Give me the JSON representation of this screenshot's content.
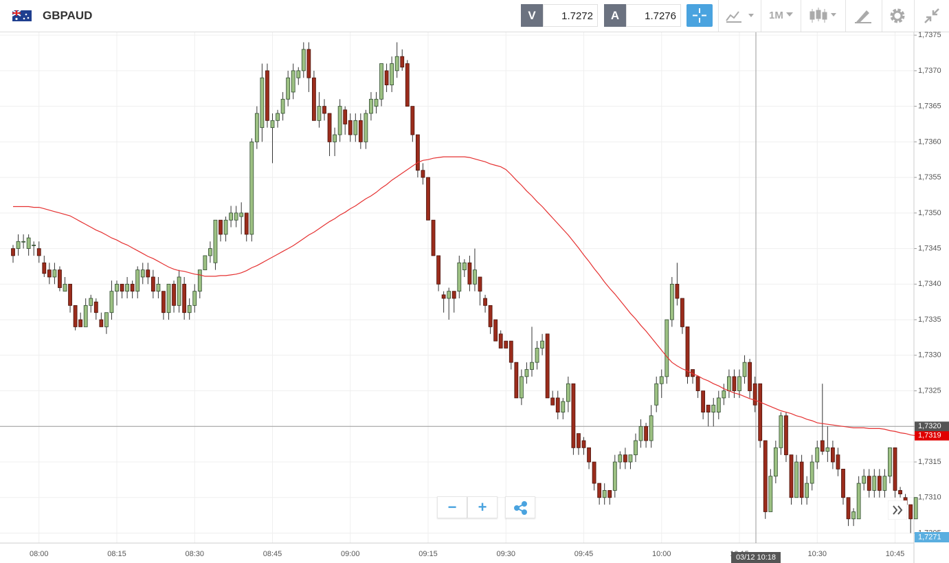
{
  "header": {
    "symbol": "GBPAUD",
    "sell_label": "V",
    "sell": "1.7272",
    "buy_label": "A",
    "buy": "1.7276",
    "timeframe": "1M"
  },
  "chart_data": {
    "type": "candlestick",
    "categories": [
      null,
      null,
      null,
      null,
      null,
      "08:00",
      null,
      null,
      null,
      null,
      null,
      null,
      null,
      null,
      null,
      null,
      null,
      null,
      null,
      null,
      "08:15",
      null,
      null,
      null,
      null,
      null,
      null,
      null,
      null,
      null,
      null,
      null,
      null,
      null,
      null,
      "08:30",
      null,
      null,
      null,
      null,
      null,
      null,
      null,
      null,
      null,
      null,
      null,
      null,
      null,
      null,
      "08:45",
      null,
      null,
      null,
      null,
      null,
      null,
      null,
      null,
      null,
      null,
      null,
      null,
      null,
      null,
      "09:00",
      null,
      null,
      null,
      null,
      null,
      null,
      null,
      null,
      null,
      null,
      null,
      null,
      null,
      null,
      "09:15",
      null,
      null,
      null,
      null,
      null,
      null,
      null,
      null,
      null,
      null,
      null,
      null,
      null,
      null,
      "09:30",
      null,
      null,
      null,
      null,
      null,
      null,
      null,
      null,
      null,
      null,
      null,
      null,
      null,
      null,
      "09:45",
      null,
      null,
      null,
      null,
      null,
      null,
      null,
      null,
      null,
      null,
      null,
      null,
      null,
      null,
      "10:00",
      null,
      null,
      null,
      null,
      null,
      null,
      null,
      null,
      null,
      null,
      null,
      null,
      null,
      null,
      "10:15",
      null,
      null,
      null,
      null,
      null,
      null,
      null,
      null,
      null,
      null,
      null,
      null,
      null,
      null,
      "10:30",
      null,
      null,
      null,
      null,
      null,
      null,
      null,
      null,
      null,
      null,
      null,
      null,
      null,
      null,
      "10:45",
      null,
      null,
      null,
      null
    ],
    "open": [
      1.7345,
      1.7345,
      1.7346,
      1.7345,
      1.73455,
      1.7345,
      1.7343,
      1.7342,
      1.7341,
      1.7342,
      1.7339,
      1.734,
      1.7337,
      1.7335,
      1.7334,
      1.7337,
      1.73375,
      1.7335,
      1.7334,
      1.7336,
      1.7339,
      1.734,
      1.7339,
      1.734,
      1.7339,
      1.7341,
      1.7342,
      1.7341,
      1.7339,
      1.7339,
      1.7336,
      1.734,
      1.7337,
      1.734,
      1.7336,
      1.7337,
      1.7339,
      1.7342,
      1.7344,
      1.7343,
      1.7349,
      1.7347,
      1.7349,
      1.7349,
      1.73495,
      1.735,
      1.7347,
      1.736,
      1.7362,
      1.737,
      1.7362,
      1.7363,
      1.7364,
      1.7366,
      1.7367,
      1.7369,
      1.737,
      1.7373,
      1.7369,
      1.7363,
      1.7365,
      1.7364,
      1.736,
      1.7361,
      1.73645,
      1.7363,
      1.7361,
      1.7363,
      1.736,
      1.7364,
      1.7365,
      1.7366,
      1.737,
      1.7368,
      1.737,
      1.7372,
      1.7371,
      1.7365,
      1.7361,
      1.7356,
      1.7355,
      1.7349,
      1.7344,
      1.73385,
      1.7338,
      1.7339,
      1.7339,
      1.7342,
      1.7343,
      1.734,
      1.7341,
      1.7338,
      1.7337,
      1.7335,
      1.7333,
      1.7332,
      1.7332,
      1.7329,
      1.7324,
      1.7327,
      1.7328,
      1.7329,
      1.7331,
      1.7333,
      1.7324,
      1.7324,
      1.7322,
      1.73235,
      1.7326,
      1.7319,
      1.7318,
      1.7317,
      1.7315,
      1.7312,
      1.731,
      1.7311,
      1.7311,
      1.7315,
      1.7316,
      1.7315,
      1.7316,
      1.7318,
      1.732,
      1.7318,
      1.7323,
      1.7326,
      1.7327,
      1.7335,
      1.734,
      1.7338,
      1.7334,
      1.7328,
      1.7327,
      1.7325,
      1.7323,
      1.7322,
      1.7322,
      1.7324,
      1.7325,
      1.7327,
      1.7325,
      1.7327,
      1.7329,
      1.7326,
      1.7326,
      1.7318,
      1.7308,
      1.7313,
      1.7317,
      1.73215,
      1.7316,
      1.731,
      1.7315,
      1.731,
      1.7312,
      1.7315,
      1.7318,
      1.73165,
      1.7317,
      1.7316,
      1.7314,
      1.731,
      1.7307,
      1.7307,
      1.7312,
      1.7313,
      1.7311,
      1.7313,
      1.7311,
      1.7313,
      1.7317,
      1.7311,
      1.731,
      1.7309,
      1.7307
    ],
    "high": [
      1.73455,
      1.7347,
      1.7347,
      1.7347,
      1.7346,
      1.7346,
      1.7344,
      1.7343,
      1.7343,
      1.73425,
      1.7341,
      1.734,
      1.7337,
      1.7336,
      1.7338,
      1.73385,
      1.7338,
      1.7336,
      1.7336,
      1.73405,
      1.73405,
      1.734,
      1.7341,
      1.73405,
      1.73425,
      1.7343,
      1.7343,
      1.7342,
      1.7341,
      1.7339,
      1.734,
      1.73405,
      1.7342,
      1.7341,
      1.7338,
      1.734,
      1.7342,
      1.7344,
      1.7346,
      1.7349,
      1.7349,
      1.73495,
      1.7351,
      1.7351,
      1.73515,
      1.735,
      1.73605,
      1.7365,
      1.7371,
      1.7371,
      1.7364,
      1.73645,
      1.7367,
      1.737,
      1.7371,
      1.73705,
      1.7374,
      1.7374,
      1.737,
      1.7367,
      1.7366,
      1.7364,
      1.7362,
      1.7366,
      1.7365,
      1.7364,
      1.7364,
      1.7364,
      1.73645,
      1.7367,
      1.7367,
      1.7371,
      1.7371,
      1.7372,
      1.7374,
      1.7373,
      1.73715,
      1.7365,
      1.7361,
      1.7357,
      1.7355,
      1.7349,
      1.7344,
      1.7339,
      1.73395,
      1.7339,
      1.7344,
      1.73435,
      1.7344,
      1.7345,
      1.7341,
      1.73385,
      1.7337,
      1.7335,
      1.73335,
      1.7332,
      1.7332,
      1.7329,
      1.7328,
      1.7329,
      1.7334,
      1.7332,
      1.7333,
      1.7333,
      1.7325,
      1.7325,
      1.7324,
      1.7327,
      1.7326,
      1.7319,
      1.73185,
      1.7317,
      1.7315,
      1.7312,
      1.7312,
      1.7311,
      1.7316,
      1.73165,
      1.7317,
      1.7316,
      1.7319,
      1.7321,
      1.73205,
      1.7323,
      1.7327,
      1.7328,
      1.7335,
      1.7341,
      1.7343,
      1.7338,
      1.7334,
      1.7328,
      1.7327,
      1.7325,
      1.7323,
      1.7324,
      1.7325,
      1.7326,
      1.7328,
      1.7328,
      1.7328,
      1.733,
      1.73295,
      1.7327,
      1.7326,
      1.7318,
      1.7314,
      1.7318,
      1.7322,
      1.7322,
      1.7316,
      1.7316,
      1.7316,
      1.7313,
      1.7316,
      1.7318,
      1.7326,
      1.732,
      1.7318,
      1.7317,
      1.7314,
      1.731,
      1.73085,
      1.7313,
      1.7314,
      1.7314,
      1.7314,
      1.7314,
      1.7314,
      1.7317,
      1.7317,
      1.73115,
      1.73105,
      1.7309,
      1.731
    ],
    "low": [
      1.7343,
      1.7344,
      1.7345,
      1.7344,
      1.7344,
      1.7343,
      1.7341,
      1.734,
      1.734,
      1.7339,
      1.7339,
      1.7336,
      1.73335,
      1.7334,
      1.7334,
      1.7336,
      1.7335,
      1.7334,
      1.7333,
      1.7335,
      1.7337,
      1.7338,
      1.7338,
      1.7338,
      1.7338,
      1.734,
      1.734,
      1.7338,
      1.7338,
      1.7335,
      1.7335,
      1.7336,
      1.7336,
      1.7335,
      1.7335,
      1.7336,
      1.7338,
      1.7342,
      1.7343,
      1.7342,
      1.7346,
      1.7346,
      1.7348,
      1.7348,
      1.7347,
      1.7346,
      1.7346,
      1.7359,
      1.736,
      1.7362,
      1.7357,
      1.7362,
      1.7363,
      1.7365,
      1.7366,
      1.7368,
      1.7369,
      1.7367,
      1.7363,
      1.7362,
      1.7363,
      1.7358,
      1.7358,
      1.736,
      1.7361,
      1.736,
      1.736,
      1.7359,
      1.7359,
      1.7363,
      1.7364,
      1.7365,
      1.7367,
      1.7367,
      1.7369,
      1.737,
      1.7365,
      1.736,
      1.7355,
      1.7354,
      1.7349,
      1.7344,
      1.7339,
      1.7336,
      1.7335,
      1.7336,
      1.7338,
      1.7341,
      1.7339,
      1.7339,
      1.7337,
      1.7336,
      1.7333,
      1.7332,
      1.7331,
      1.7331,
      1.7328,
      1.7324,
      1.7323,
      1.7326,
      1.7327,
      1.7328,
      1.733,
      1.7324,
      1.7323,
      1.7321,
      1.7321,
      1.7322,
      1.7316,
      1.7316,
      1.7316,
      1.7314,
      1.7311,
      1.7309,
      1.7309,
      1.7309,
      1.731,
      1.7314,
      1.7314,
      1.7314,
      1.7315,
      1.7317,
      1.7317,
      1.7317,
      1.7322,
      1.7324,
      1.7326,
      1.7334,
      1.7337,
      1.7333,
      1.7326,
      1.7326,
      1.7324,
      1.7321,
      1.732,
      1.732,
      1.7321,
      1.7323,
      1.7324,
      1.7324,
      1.7324,
      1.7326,
      1.7324,
      1.7322,
      1.7317,
      1.7307,
      1.7308,
      1.7312,
      1.7316,
      1.7315,
      1.7309,
      1.731,
      1.7309,
      1.7309,
      1.7311,
      1.7314,
      1.7316,
      1.7315,
      1.7314,
      1.7313,
      1.7309,
      1.7306,
      1.7306,
      1.7307,
      1.7311,
      1.731,
      1.731,
      1.731,
      1.731,
      1.7312,
      1.731,
      1.731,
      1.7307,
      1.7305,
      1.7307
    ],
    "close": [
      1.7344,
      1.7346,
      1.7346,
      1.73465,
      1.73455,
      1.7344,
      1.73415,
      1.7341,
      1.7342,
      1.73395,
      1.734,
      1.7337,
      1.7334,
      1.7334,
      1.7337,
      1.7338,
      1.7336,
      1.7334,
      1.7336,
      1.7339,
      1.734,
      1.7339,
      1.734,
      1.7339,
      1.7342,
      1.7342,
      1.7341,
      1.7339,
      1.734,
      1.7336,
      1.734,
      1.7337,
      1.7341,
      1.7336,
      1.7337,
      1.7339,
      1.7342,
      1.7344,
      1.7345,
      1.7349,
      1.7347,
      1.7349,
      1.735,
      1.735,
      1.735,
      1.7347,
      1.736,
      1.7364,
      1.7369,
      1.7363,
      1.7363,
      1.7364,
      1.7366,
      1.7369,
      1.737,
      1.737,
      1.7373,
      1.7369,
      1.7363,
      1.7365,
      1.7364,
      1.736,
      1.7361,
      1.7365,
      1.73625,
      1.7361,
      1.7363,
      1.736,
      1.7364,
      1.7366,
      1.7366,
      1.7371,
      1.7368,
      1.7371,
      1.7372,
      1.73705,
      1.7365,
      1.7361,
      1.7356,
      1.7355,
      1.7349,
      1.7344,
      1.734,
      1.7338,
      1.7339,
      1.7338,
      1.7343,
      1.7343,
      1.734,
      1.7342,
      1.7339,
      1.7337,
      1.7334,
      1.7332,
      1.7331,
      1.7331,
      1.7329,
      1.7324,
      1.7327,
      1.7328,
      1.7329,
      1.7331,
      1.7332,
      1.7324,
      1.7323,
      1.7322,
      1.73235,
      1.7326,
      1.7317,
      1.7317,
      1.7317,
      1.7315,
      1.7312,
      1.731,
      1.7311,
      1.731,
      1.7315,
      1.7316,
      1.7315,
      1.7316,
      1.7318,
      1.732,
      1.7318,
      1.73215,
      1.7326,
      1.7327,
      1.7335,
      1.734,
      1.7338,
      1.7334,
      1.7327,
      1.7327,
      1.7325,
      1.7322,
      1.7322,
      1.7323,
      1.7324,
      1.7325,
      1.7327,
      1.7325,
      1.7327,
      1.7329,
      1.7325,
      1.7323,
      1.7318,
      1.7308,
      1.7313,
      1.7317,
      1.73215,
      1.7316,
      1.731,
      1.7315,
      1.731,
      1.7312,
      1.7315,
      1.7317,
      1.73165,
      1.7317,
      1.7315,
      1.7314,
      1.731,
      1.7307,
      1.7308,
      1.7312,
      1.7313,
      1.7311,
      1.7313,
      1.7311,
      1.7313,
      1.7317,
      1.7311,
      1.73105,
      1.7309,
      1.7307,
      1.731
    ],
    "up_color": "#9dc183",
    "down_color": "#9b2c1c",
    "series": [
      {
        "color": "#e53030",
        "last_value_label": "1,7319",
        "values": [
          1.73509,
          1.73509,
          1.73509,
          1.73509,
          1.73508,
          1.73508,
          1.73506,
          1.73504,
          1.73502,
          1.735,
          1.73498,
          1.73496,
          1.73492,
          1.73488,
          1.73484,
          1.7348,
          1.73476,
          1.73473,
          1.73469,
          1.73465,
          1.73462,
          1.73458,
          1.73455,
          1.73451,
          1.73447,
          1.73443,
          1.73439,
          1.73436,
          1.73432,
          1.73428,
          1.73424,
          1.73421,
          1.73419,
          1.73418,
          1.73416,
          1.73414,
          1.73413,
          1.73411,
          1.73411,
          1.73411,
          1.73412,
          1.73412,
          1.73413,
          1.73414,
          1.73416,
          1.73419,
          1.73423,
          1.73426,
          1.7343,
          1.73434,
          1.73438,
          1.73442,
          1.73446,
          1.7345,
          1.73454,
          1.73459,
          1.73464,
          1.73469,
          1.73473,
          1.73478,
          1.73483,
          1.73488,
          1.73492,
          1.73497,
          1.73501,
          1.73506,
          1.7351,
          1.73515,
          1.7352,
          1.73524,
          1.73529,
          1.73535,
          1.7354,
          1.73546,
          1.73551,
          1.73556,
          1.73561,
          1.73566,
          1.73571,
          1.73574,
          1.73575,
          1.73577,
          1.73578,
          1.73579,
          1.73579,
          1.73579,
          1.73579,
          1.73579,
          1.73578,
          1.73576,
          1.73574,
          1.73572,
          1.73569,
          1.73567,
          1.73565,
          1.73561,
          1.73554,
          1.73546,
          1.73539,
          1.73531,
          1.73524,
          1.73516,
          1.73509,
          1.73501,
          1.73493,
          1.73485,
          1.73477,
          1.73469,
          1.7346,
          1.73451,
          1.73441,
          1.73432,
          1.73422,
          1.73413,
          1.73403,
          1.73394,
          1.73386,
          1.73377,
          1.73368,
          1.73359,
          1.73351,
          1.73342,
          1.73334,
          1.73325,
          1.73316,
          1.73307,
          1.73298,
          1.7329,
          1.73285,
          1.73281,
          1.73278,
          1.73274,
          1.73271,
          1.73267,
          1.73264,
          1.7326,
          1.73257,
          1.73253,
          1.7325,
          1.73247,
          1.73245,
          1.73242,
          1.73239,
          1.73237,
          1.73234,
          1.73231,
          1.73228,
          1.73225,
          1.73222,
          1.7322,
          1.73218,
          1.73215,
          1.73213,
          1.7321,
          1.73208,
          1.73205,
          1.73204,
          1.73203,
          1.73202,
          1.73201,
          1.732,
          1.73199,
          1.73198,
          1.73198,
          1.73198,
          1.73197,
          1.73197,
          1.73197,
          1.73196,
          1.73194,
          1.73193,
          1.73191,
          1.7319,
          1.73188,
          1.73187
        ]
      }
    ],
    "ylim": [
      1.73036,
      1.73754
    ],
    "yticks": [
      {
        "value": 1.7305,
        "label": "1,7305"
      },
      {
        "value": 1.731,
        "label": "1,7310"
      },
      {
        "value": 1.7315,
        "label": "1,7315"
      },
      {
        "value": 1.732,
        "label": "1,7320"
      },
      {
        "value": 1.7325,
        "label": "1,7325"
      },
      {
        "value": 1.733,
        "label": "1,7330"
      },
      {
        "value": 1.7335,
        "label": "1,7335"
      },
      {
        "value": 1.734,
        "label": "1,7340"
      },
      {
        "value": 1.7345,
        "label": "1,7345"
      },
      {
        "value": 1.735,
        "label": "1,7350"
      },
      {
        "value": 1.7355,
        "label": "1,7355"
      },
      {
        "value": 1.736,
        "label": "1,7360"
      },
      {
        "value": 1.7365,
        "label": "1,7365"
      },
      {
        "value": 1.737,
        "label": "1,7370"
      },
      {
        "value": 1.7375,
        "label": "1,7375"
      }
    ],
    "grid": true,
    "crosshair": {
      "y": {
        "value": 1.732,
        "label": "1,7320"
      },
      "x_label": "03/12 10:18"
    },
    "price_label": "1,7271"
  }
}
